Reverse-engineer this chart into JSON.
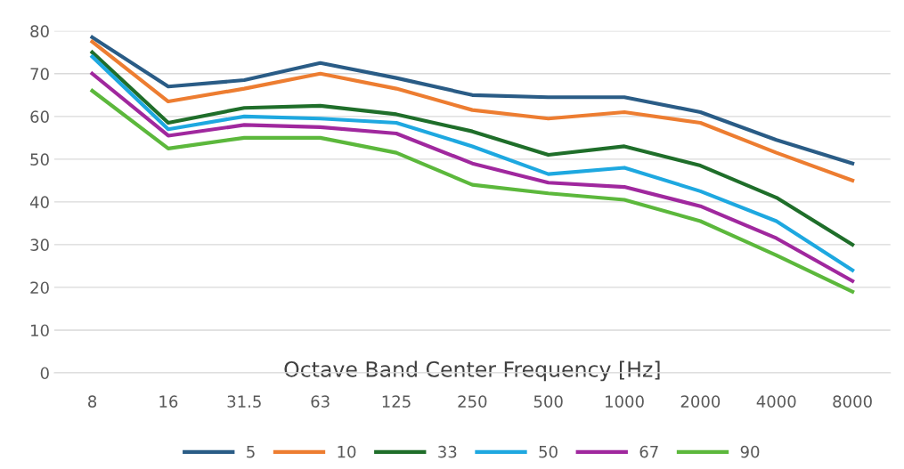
{
  "chart_data": {
    "type": "line",
    "xlabel": "Octave Band Center Frequency [Hz]",
    "categories": [
      "8",
      "16",
      "31.5",
      "63",
      "125",
      "250",
      "500",
      "1000",
      "2000",
      "4000",
      "8000"
    ],
    "series": [
      {
        "name": "5",
        "color": "#2a5c86",
        "values": [
          78.5,
          67,
          68.5,
          72.5,
          69,
          65,
          64.5,
          64.5,
          61,
          54.5,
          49
        ]
      },
      {
        "name": "10",
        "color": "#ed7d31",
        "values": [
          77.5,
          63.5,
          66.5,
          70,
          66.5,
          61.5,
          59.5,
          61,
          58.5,
          51.5,
          45
        ]
      },
      {
        "name": "33",
        "color": "#1f6e2a",
        "values": [
          75,
          58.5,
          62,
          62.5,
          60.5,
          56.5,
          51,
          53,
          48.5,
          41,
          30
        ]
      },
      {
        "name": "50",
        "color": "#1ea8e0",
        "values": [
          74,
          57,
          60,
          59.5,
          58.5,
          53,
          46.5,
          48,
          42.5,
          35.5,
          24
        ]
      },
      {
        "name": "67",
        "color": "#a0289e",
        "values": [
          70,
          55.5,
          58,
          57.5,
          56,
          49,
          44.5,
          43.5,
          39,
          31.5,
          21.5
        ]
      },
      {
        "name": "90",
        "color": "#5cb83c",
        "values": [
          66,
          52.5,
          55,
          55,
          51.5,
          44,
          42,
          40.5,
          35.5,
          27.5,
          19
        ]
      }
    ],
    "ylim": [
      0,
      80
    ],
    "yticks": [
      0,
      10,
      20,
      30,
      40,
      50,
      60,
      70,
      80
    ],
    "grid": "y",
    "legend": "bottom",
    "marker": "none",
    "line_style": "solid"
  }
}
